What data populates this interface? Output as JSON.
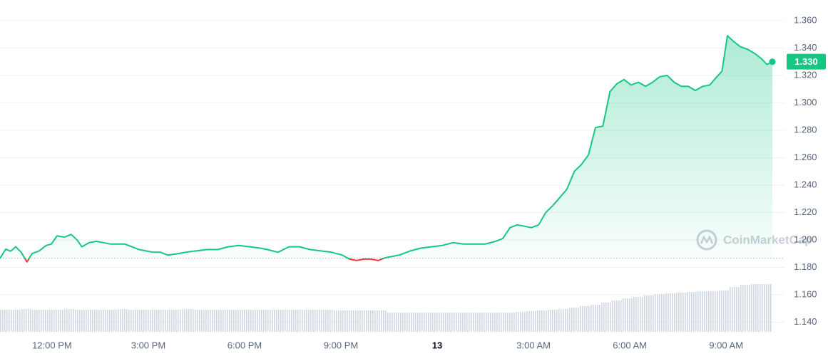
{
  "chart_data": {
    "type": "line",
    "watermark": "CoinMarketCap",
    "x": [
      -1.62,
      -1.44,
      -1.29,
      -1.13,
      -0.96,
      -0.78,
      -0.62,
      -0.4,
      -0.18,
      -0.02,
      0.16,
      0.38,
      0.6,
      0.78,
      0.93,
      1.16,
      1.38,
      1.6,
      1.82,
      2.04,
      2.27,
      2.49,
      2.71,
      2.93,
      3.16,
      3.38,
      3.6,
      3.93,
      4.16,
      4.49,
      4.82,
      5.16,
      5.49,
      5.82,
      6.16,
      6.49,
      6.71,
      7.04,
      7.38,
      7.71,
      8.04,
      8.38,
      8.71,
      9.04,
      9.27,
      9.49,
      9.71,
      9.93,
      10.16,
      10.38,
      10.6,
      10.82,
      11.16,
      11.49,
      11.82,
      12.16,
      12.49,
      12.82,
      13.16,
      13.49,
      13.82,
      14.04,
      14.27,
      14.49,
      14.71,
      14.93,
      15.16,
      15.38,
      15.6,
      15.82,
      16.04,
      16.27,
      16.49,
      16.71,
      16.93,
      17.16,
      17.38,
      17.6,
      17.82,
      18.04,
      18.27,
      18.49,
      18.71,
      18.93,
      19.16,
      19.38,
      19.6,
      19.82,
      20.04,
      20.27,
      20.49,
      20.71,
      20.87,
      21.04,
      21.22,
      21.44,
      21.67,
      21.89,
      22.11,
      22.27,
      22.44
    ],
    "series": [
      {
        "color": "#16c784",
        "down_color": "#ea3943",
        "values": [
          1.1866,
          1.1933,
          1.1918,
          1.195,
          1.191,
          1.184,
          1.19,
          1.192,
          1.196,
          1.197,
          1.203,
          1.202,
          1.204,
          1.2,
          1.195,
          1.198,
          1.199,
          1.198,
          1.197,
          1.197,
          1.197,
          1.195,
          1.193,
          1.192,
          1.191,
          1.191,
          1.189,
          1.19,
          1.191,
          1.192,
          1.193,
          1.193,
          1.195,
          1.196,
          1.195,
          1.194,
          1.193,
          1.191,
          1.195,
          1.195,
          1.193,
          1.192,
          1.191,
          1.189,
          1.186,
          1.185,
          1.186,
          1.186,
          1.185,
          1.187,
          1.188,
          1.189,
          1.192,
          1.194,
          1.195,
          1.196,
          1.198,
          1.197,
          1.197,
          1.197,
          1.199,
          1.201,
          1.209,
          1.211,
          1.21,
          1.209,
          1.211,
          1.22,
          1.225,
          1.231,
          1.237,
          1.25,
          1.255,
          1.262,
          1.282,
          1.283,
          1.308,
          1.314,
          1.317,
          1.313,
          1.315,
          1.312,
          1.315,
          1.319,
          1.32,
          1.315,
          1.312,
          1.312,
          1.309,
          1.312,
          1.313,
          1.319,
          1.323,
          1.349,
          1.345,
          1.341,
          1.339,
          1.336,
          1.332,
          1.328,
          1.33
        ]
      }
    ],
    "current_price": {
      "value": 1.33,
      "label": "1.330"
    },
    "volume": {
      "color": "#cfd6e4",
      "values": [
        31,
        31,
        32,
        31,
        31,
        31,
        32,
        31,
        31,
        31,
        31,
        32,
        31,
        31,
        31,
        31,
        31,
        32,
        31,
        31,
        31,
        31,
        31,
        31,
        31,
        31,
        31,
        31,
        31,
        31,
        31,
        30,
        30,
        30,
        30,
        30,
        27,
        27,
        27,
        27,
        27,
        27,
        27,
        27,
        27,
        27,
        27,
        27,
        28,
        29,
        30,
        31,
        32,
        34,
        36,
        38,
        41,
        44,
        47,
        49,
        51,
        53,
        54,
        55,
        56,
        57,
        57,
        58,
        63,
        66,
        67,
        67
      ]
    },
    "xlim": [
      -1.62,
      22.44
    ],
    "xticks": [
      {
        "value": 0,
        "label": "12:00 PM"
      },
      {
        "value": 3,
        "label": "3:00 PM"
      },
      {
        "value": 6,
        "label": "6:00 PM"
      },
      {
        "value": 9,
        "label": "9:00 PM"
      },
      {
        "value": 12,
        "label": "13"
      },
      {
        "value": 15,
        "label": "3:00 AM"
      },
      {
        "value": 18,
        "label": "6:00 AM"
      },
      {
        "value": 21,
        "label": "9:00 AM"
      }
    ],
    "ylim": [
      1.133,
      1.375
    ],
    "yticks": [
      {
        "value": 1.14,
        "label": "1.140"
      },
      {
        "value": 1.16,
        "label": "1.160"
      },
      {
        "value": 1.18,
        "label": "1.180"
      },
      {
        "value": 1.2,
        "label": "1.200"
      },
      {
        "value": 1.22,
        "label": "1.220"
      },
      {
        "value": 1.24,
        "label": "1.240"
      },
      {
        "value": 1.26,
        "label": "1.260"
      },
      {
        "value": 1.28,
        "label": "1.280"
      },
      {
        "value": 1.3,
        "label": "1.300"
      },
      {
        "value": 1.32,
        "label": "1.320"
      },
      {
        "value": 1.34,
        "label": "1.340"
      },
      {
        "value": 1.36,
        "label": "1.360"
      }
    ],
    "grid": true
  }
}
